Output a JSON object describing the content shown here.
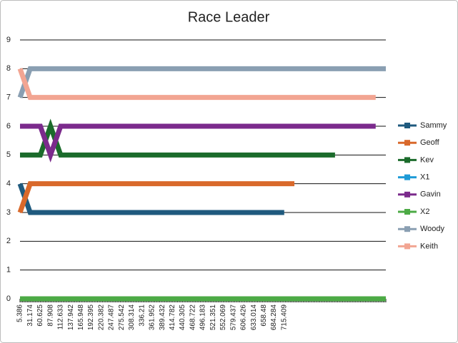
{
  "chart_data": {
    "type": "line",
    "title": "Race Leader",
    "categories": [
      "5.386",
      "31.174",
      "60.625",
      "87.908",
      "112.633",
      "137.942",
      "165.948",
      "192.395",
      "220.382",
      "247.487",
      "275.542",
      "308.314",
      "336.21",
      "361.952",
      "389.432",
      "414.782",
      "440.305",
      "468.722",
      "496.183",
      "521.351",
      "552.069",
      "579.437",
      "606.426",
      "633.014",
      "658.48",
      "684.284",
      "715.409",
      null,
      null,
      null,
      null,
      null,
      null,
      null,
      null,
      null,
      null
    ],
    "series": [
      {
        "name": "Sammy",
        "color": "#1f5a7e",
        "values": [
          4,
          3,
          3,
          3,
          3,
          3,
          3,
          3,
          3,
          3,
          3,
          3,
          3,
          3,
          3,
          3,
          3,
          3,
          3,
          3,
          3,
          3,
          3,
          3,
          3,
          3,
          3,
          null,
          null,
          null,
          null,
          null,
          null,
          null,
          null,
          null,
          null
        ]
      },
      {
        "name": "Geoff",
        "color": "#d9692b",
        "values": [
          3,
          4,
          4,
          4,
          4,
          4,
          4,
          4,
          4,
          4,
          4,
          4,
          4,
          4,
          4,
          4,
          4,
          4,
          4,
          4,
          4,
          4,
          4,
          4,
          4,
          4,
          4,
          4,
          null,
          null,
          null,
          null,
          null,
          null,
          null,
          null,
          null
        ]
      },
      {
        "name": "Kev",
        "color": "#1b6b2b",
        "values": [
          5,
          5,
          5,
          6,
          5,
          5,
          5,
          5,
          5,
          5,
          5,
          5,
          5,
          5,
          5,
          5,
          5,
          5,
          5,
          5,
          5,
          5,
          5,
          5,
          5,
          5,
          5,
          5,
          5,
          5,
          5,
          5,
          null,
          null,
          null,
          null,
          null
        ]
      },
      {
        "name": "X1",
        "color": "#1e9bd7",
        "values": [
          0,
          0,
          0,
          0,
          0,
          0,
          0,
          0,
          0,
          0,
          0,
          0,
          0,
          0,
          0,
          0,
          0,
          0,
          0,
          0,
          0,
          0,
          0,
          0,
          0,
          0,
          0,
          0,
          0,
          0,
          0,
          0,
          0,
          0,
          0,
          0,
          0
        ]
      },
      {
        "name": "Gavin",
        "color": "#7b2a8c",
        "values": [
          6,
          6,
          6,
          5,
          6,
          6,
          6,
          6,
          6,
          6,
          6,
          6,
          6,
          6,
          6,
          6,
          6,
          6,
          6,
          6,
          6,
          6,
          6,
          6,
          6,
          6,
          6,
          6,
          6,
          6,
          6,
          6,
          6,
          6,
          6,
          6,
          null
        ]
      },
      {
        "name": "X2",
        "color": "#4caa45",
        "values": [
          0,
          0,
          0,
          0,
          0,
          0,
          0,
          0,
          0,
          0,
          0,
          0,
          0,
          0,
          0,
          0,
          0,
          0,
          0,
          0,
          0,
          0,
          0,
          0,
          0,
          0,
          0,
          0,
          0,
          0,
          0,
          0,
          0,
          0,
          0,
          0,
          0
        ]
      },
      {
        "name": "Woody",
        "color": "#8a9fb2",
        "values": [
          7,
          8,
          8,
          8,
          8,
          8,
          8,
          8,
          8,
          8,
          8,
          8,
          8,
          8,
          8,
          8,
          8,
          8,
          8,
          8,
          8,
          8,
          8,
          8,
          8,
          8,
          8,
          8,
          8,
          8,
          8,
          8,
          8,
          8,
          8,
          8,
          8
        ]
      },
      {
        "name": "Keith",
        "color": "#f2a592",
        "values": [
          8,
          7,
          7,
          7,
          7,
          7,
          7,
          7,
          7,
          7,
          7,
          7,
          7,
          7,
          7,
          7,
          7,
          7,
          7,
          7,
          7,
          7,
          7,
          7,
          7,
          7,
          7,
          7,
          7,
          7,
          7,
          7,
          7,
          7,
          7,
          7,
          null
        ]
      }
    ],
    "ylim": [
      0,
      9
    ],
    "yticks": [
      0,
      1,
      2,
      3,
      4,
      5,
      6,
      7,
      8,
      9
    ],
    "grid": true,
    "legend": "right"
  }
}
